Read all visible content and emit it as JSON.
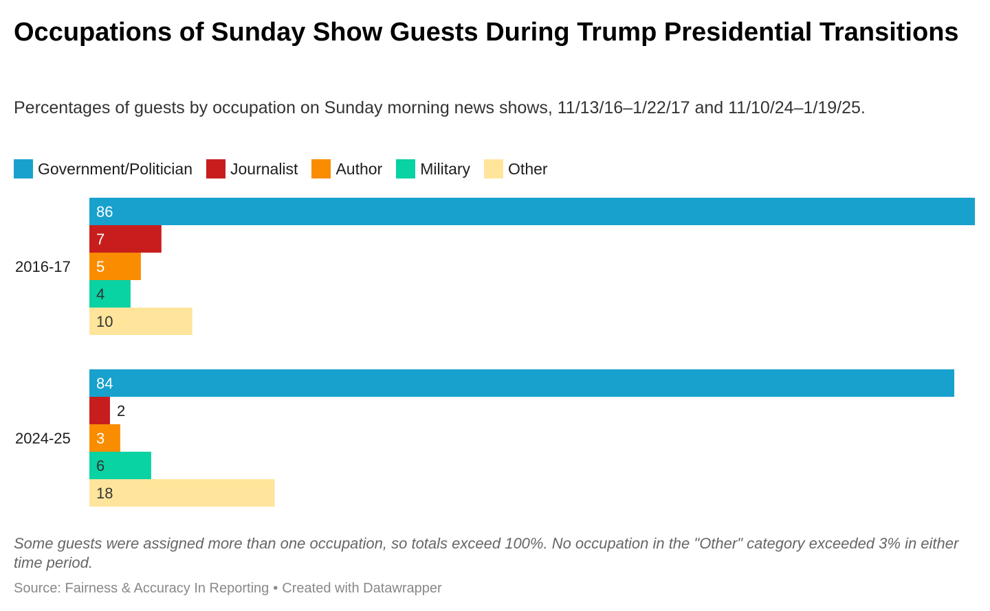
{
  "chart_data": {
    "type": "bar",
    "orientation": "horizontal",
    "title": "Occupations of Sunday Show Guests During Trump Presidential Transitions",
    "subtitle": "Percentages of guests by occupation on Sunday morning news shows, 11/13/16–1/22/17 and 11/10/24–1/19/25.",
    "categories": [
      "2016-17",
      "2024-25"
    ],
    "series": [
      {
        "name": "Government/Politician",
        "color": "#18a1cd",
        "label_color": "#ffffff",
        "values": [
          86,
          84
        ]
      },
      {
        "name": "Journalist",
        "color": "#c71e1d",
        "label_color": "#ffffff",
        "values": [
          7,
          2
        ]
      },
      {
        "name": "Author",
        "color": "#fa8c00",
        "label_color": "#ffffff",
        "values": [
          5,
          3
        ]
      },
      {
        "name": "Military",
        "color": "#09d2a3",
        "label_color": "#333333",
        "values": [
          4,
          6
        ]
      },
      {
        "name": "Other",
        "color": "#ffe59c",
        "label_color": "#333333",
        "values": [
          10,
          18
        ]
      }
    ],
    "xlim": [
      0,
      86
    ],
    "grid": false,
    "legend": "top-left",
    "notes": "Some guests were assigned more than one occupation, so totals exceed 100%. No occupation in the \"Other\" category exceeded 3% in either time period.",
    "source": "Source: Fairness & Accuracy In Reporting",
    "credit": "Created with Datawrapper"
  }
}
